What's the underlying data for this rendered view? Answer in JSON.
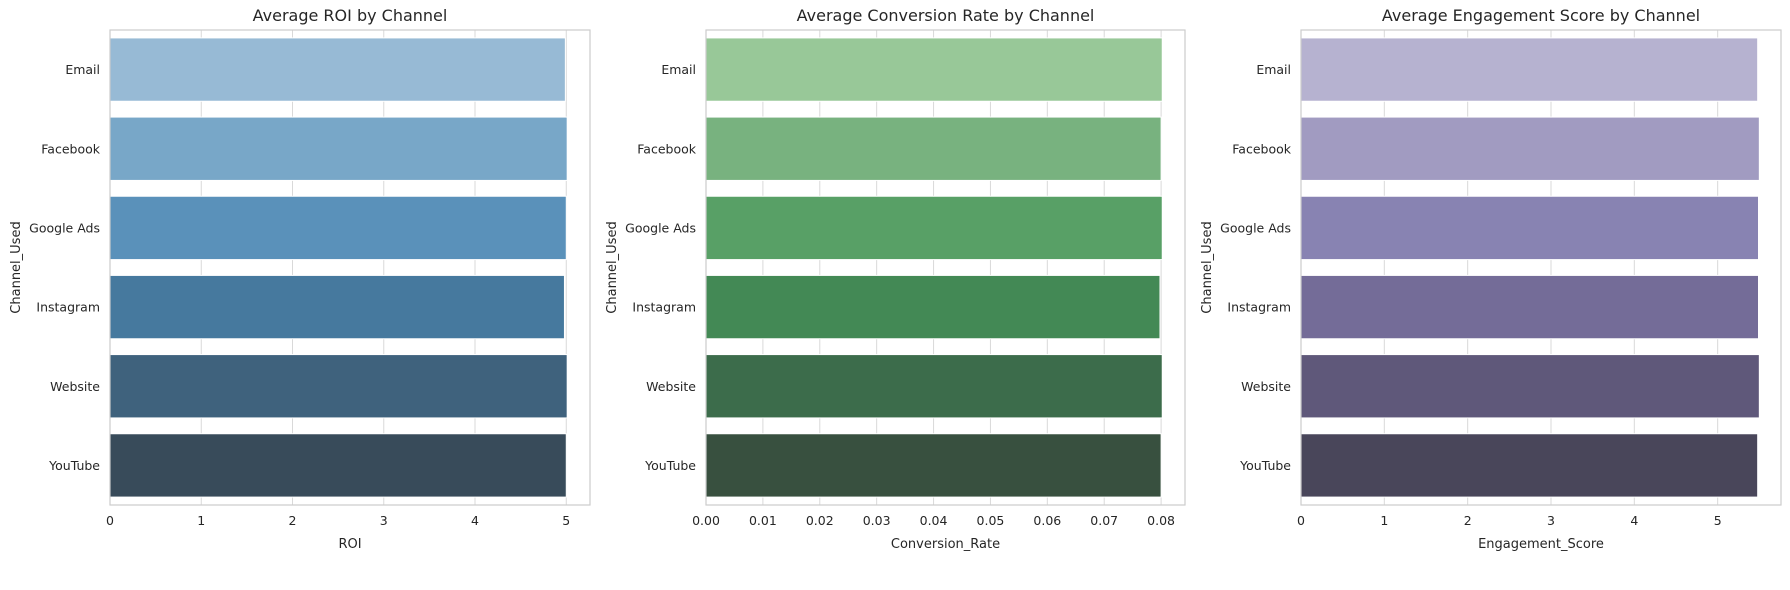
{
  "chart_data": [
    {
      "type": "bar",
      "orientation": "horizontal",
      "title": "Average ROI by Channel",
      "xlabel": "ROI",
      "ylabel": "Channel_Used",
      "categories": [
        "Email",
        "Facebook",
        "Google Ads",
        "Instagram",
        "Website",
        "YouTube"
      ],
      "values": [
        4.99,
        5.01,
        5.0,
        4.98,
        5.01,
        5.0
      ],
      "xlim": [
        0,
        5.26
      ],
      "xticks": [
        0,
        1,
        2,
        3,
        4,
        5
      ],
      "xtick_labels": [
        "0",
        "1",
        "2",
        "3",
        "4",
        "5"
      ],
      "grid": true,
      "colors": [
        "#97bad5",
        "#78a7c8",
        "#5a91ba",
        "#46799e",
        "#3f627d",
        "#384b5a"
      ]
    },
    {
      "type": "bar",
      "orientation": "horizontal",
      "title": "Average Conversion Rate by Channel",
      "xlabel": "Conversion_Rate",
      "ylabel": "Channel_Used",
      "categories": [
        "Email",
        "Facebook",
        "Google Ads",
        "Instagram",
        "Website",
        "YouTube"
      ],
      "values": [
        0.0802,
        0.08,
        0.0802,
        0.0798,
        0.0802,
        0.08
      ],
      "xlim": [
        0,
        0.0842
      ],
      "xticks": [
        0,
        0.01,
        0.02,
        0.03,
        0.04,
        0.05,
        0.06,
        0.07,
        0.08
      ],
      "xtick_labels": [
        "0.00",
        "0.01",
        "0.02",
        "0.03",
        "0.04",
        "0.05",
        "0.06",
        "0.07",
        "0.08"
      ],
      "grid": true,
      "colors": [
        "#98c898",
        "#78b27f",
        "#58a066",
        "#438955",
        "#3c6c4b",
        "#38503f"
      ]
    },
    {
      "type": "bar",
      "orientation": "horizontal",
      "title": "Average Engagement Score by Channel",
      "xlabel": "Engagement_Score",
      "ylabel": "Channel_Used",
      "categories": [
        "Email",
        "Facebook",
        "Google Ads",
        "Instagram",
        "Website",
        "YouTube"
      ],
      "values": [
        5.48,
        5.5,
        5.49,
        5.49,
        5.5,
        5.48
      ],
      "xlim": [
        0,
        5.76
      ],
      "xticks": [
        0,
        1,
        2,
        3,
        4,
        5
      ],
      "xtick_labels": [
        "0",
        "1",
        "2",
        "3",
        "4",
        "5"
      ],
      "grid": true,
      "colors": [
        "#b6b2d0",
        "#a19bc1",
        "#8883b2",
        "#746c98",
        "#5f587a",
        "#49465a"
      ]
    }
  ]
}
